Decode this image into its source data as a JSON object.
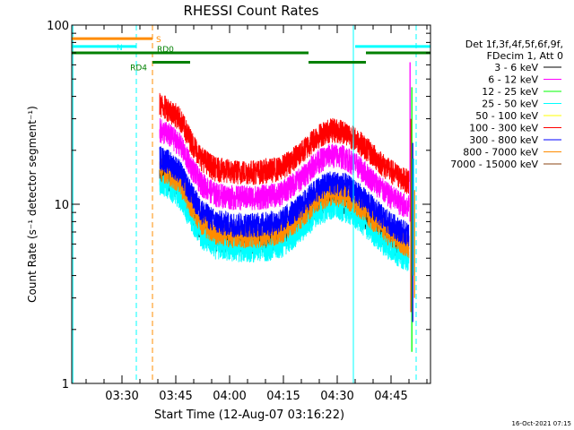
{
  "chart_data": {
    "type": "line",
    "title": "RHESSI Count Rates",
    "xlabel": "Start Time (12-Aug-07 03:16:22)",
    "ylabel": "Count Rate (s⁻¹ detector segment⁻¹)",
    "y_scale": "log",
    "ylim": [
      1,
      100
    ],
    "y_ticks": [
      {
        "value": 1,
        "label": "1"
      },
      {
        "value": 10,
        "label": "10"
      },
      {
        "value": 100,
        "label": "100"
      }
    ],
    "xlim_minutes": [
      0,
      100
    ],
    "x_ticks": [
      {
        "minute": 14,
        "label": "03:30"
      },
      {
        "minute": 29,
        "label": "03:45"
      },
      {
        "minute": 44,
        "label": "04:00"
      },
      {
        "minute": 59,
        "label": "04:15"
      },
      {
        "minute": 74,
        "label": "04:30"
      },
      {
        "minute": 89,
        "label": "04:45"
      }
    ],
    "legend": {
      "placement": "right",
      "header": [
        "Det 1f,3f,4f,5f,6f,9f,",
        "FDecim 1, Att 0"
      ]
    },
    "series": [
      {
        "name": "3 - 6 keV",
        "color": "#000000",
        "scale": 0.5
      },
      {
        "name": "6 - 12 keV",
        "color": "#ff00ff",
        "scale": 0.88
      },
      {
        "name": "12 - 25 keV",
        "color": "#00ff00",
        "scale": 0.5
      },
      {
        "name": "25 - 50 keV",
        "color": "#00ffff",
        "scale": 0.45
      },
      {
        "name": "50 - 100 keV",
        "color": "#ffff00",
        "scale": 0.5
      },
      {
        "name": "100 - 300 keV",
        "color": "#ff0000",
        "scale": 1.22
      },
      {
        "name": "300 - 800 keV",
        "color": "#0000ff",
        "scale": 0.62
      },
      {
        "name": "800 - 7000 keV",
        "color": "#ff8c00",
        "scale": 0.54
      },
      {
        "name": "7000 - 15000 keV",
        "color": "#8b4513",
        "scale": 0.5
      }
    ],
    "envelope_100_300_keV": [
      {
        "minute": 24,
        "value": 30
      },
      {
        "minute": 27,
        "value": 28
      },
      {
        "minute": 30,
        "value": 25
      },
      {
        "minute": 33,
        "value": 19
      },
      {
        "minute": 36,
        "value": 15
      },
      {
        "minute": 40,
        "value": 13
      },
      {
        "minute": 45,
        "value": 12.5
      },
      {
        "minute": 52,
        "value": 12.5
      },
      {
        "minute": 58,
        "value": 13
      },
      {
        "minute": 64,
        "value": 16
      },
      {
        "minute": 68,
        "value": 19.5
      },
      {
        "minute": 72,
        "value": 21.5
      },
      {
        "minute": 76,
        "value": 21
      },
      {
        "minute": 80,
        "value": 18.5
      },
      {
        "minute": 84,
        "value": 15.5
      },
      {
        "minute": 88,
        "value": 13
      },
      {
        "minute": 92,
        "value": 11.5
      },
      {
        "minute": 94,
        "value": 11
      }
    ],
    "state_bars": [
      {
        "label": "S",
        "color": "#ff8c00",
        "start": 0,
        "end": 22.5,
        "level": 84
      },
      {
        "label": "N",
        "color": "#00ffff",
        "start": 0,
        "end": 18,
        "level": 76
      },
      {
        "label": "",
        "color": "#00ffff",
        "start": 79,
        "end": 100,
        "level": 76
      },
      {
        "label": "RD0",
        "color": "#008000",
        "start": 0,
        "end": 33,
        "level": 70
      },
      {
        "label": "",
        "color": "#008000",
        "start": 32,
        "end": 66,
        "level": 70
      },
      {
        "label": "",
        "color": "#008000",
        "start": 66,
        "end": 82,
        "level": 62
      },
      {
        "label": "",
        "color": "#008000",
        "start": 82,
        "end": 100,
        "level": 70
      },
      {
        "label": "RD4",
        "color": "#008000",
        "start": 22.5,
        "end": 33,
        "level": 62
      }
    ],
    "vertical_markers": [
      {
        "minute": 0.3,
        "color": "#00ffff",
        "style": "solid"
      },
      {
        "minute": 18,
        "color": "#00ffff",
        "style": "dashed"
      },
      {
        "minute": 22.5,
        "color": "#ff8c00",
        "style": "dashed"
      },
      {
        "minute": 78.5,
        "color": "#00ffff",
        "style": "solid"
      },
      {
        "minute": 96,
        "color": "#00ffff",
        "style": "dashed"
      }
    ]
  },
  "footer": {
    "timestamp": "16-Oct-2021 07:15"
  }
}
